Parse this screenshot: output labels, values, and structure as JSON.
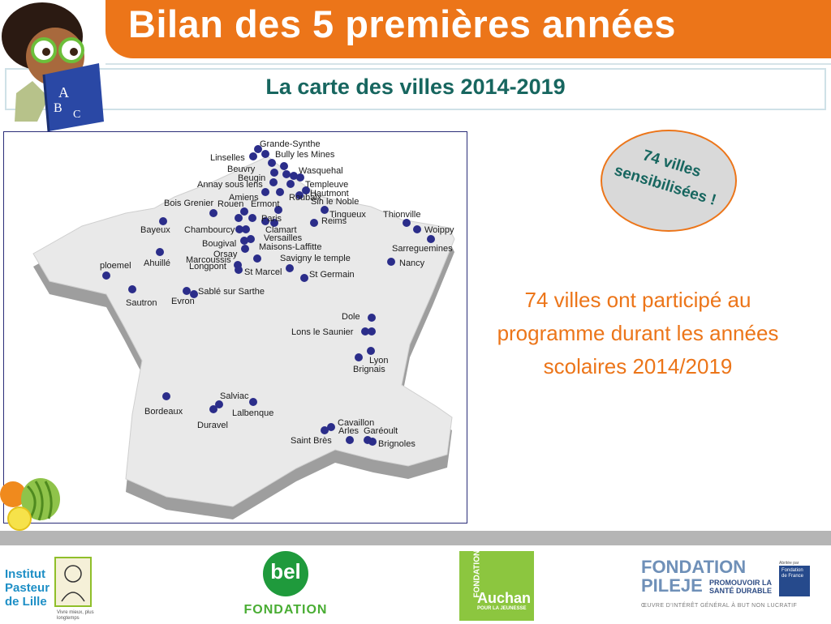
{
  "header": {
    "title": "Bilan des 5 premières années",
    "subtitle": "La carte des villes 2014-2019"
  },
  "mascot": {
    "book_letters": [
      "A",
      "B",
      "C"
    ]
  },
  "badge": {
    "line1": "74 villes",
    "line2": "sensibilisées !"
  },
  "description": "74 villes ont participé au programme durant les années scolaires 2014/2019",
  "map": {
    "cities": [
      "Grande-Synthe",
      "Bully les Mines",
      "Linselles",
      "Beuvry",
      "Wasquehal",
      "Beugin",
      "Annay sous lens",
      "Templeuve",
      "Hautmont",
      "Roubaix",
      "Amiens",
      "Sin le Noble",
      "Ermont",
      "Bois Grenier",
      "Rouen",
      "Tinqueux",
      "Thionville",
      "Paris",
      "Reims",
      "Woippy",
      "Bayeux",
      "Chambourcy",
      "Clamart",
      "Versailles",
      "Sarreguemines",
      "Bougival",
      "Maisons-Laffitte",
      "Orsay",
      "Savigny le temple",
      "Nancy",
      "Marcoussis",
      "Ahuillé",
      "Longpont",
      "ploemel",
      "St Marcel",
      "St Germain",
      "Sablé sur Sarthe",
      "Sautron",
      "Evron",
      "Dole",
      "Lons le Saunier",
      "Lyon",
      "Brignais",
      "Salviac",
      "Bordeaux",
      "Lalbenque",
      "Duravel",
      "Cavaillon",
      "Arles",
      "Garéoult",
      "Saint Brès",
      "Brignoles"
    ]
  },
  "footer": {
    "institut_pasteur": {
      "line1": "Institut",
      "line2": "Pasteur",
      "line3": "de Lille",
      "tagline": "Vivre mieux, plus longtemps"
    },
    "bel": {
      "word": "bel",
      "fondation": "FONDATION"
    },
    "auchan": {
      "vertical": "FONDATION",
      "name": "Auchan",
      "sub": "POUR LA JEUNESSE"
    },
    "pileje": {
      "line1": "FONDATION",
      "line2": "PILEJE",
      "promo": "PROMOUVOIR LA SANTÉ DURABLE",
      "abrite": "Abritée par",
      "fdf": "Fondation de France",
      "oeuvre": "ŒUVRE D'INTÉRÊT GÉNÉRAL À BUT NON LUCRATIF"
    }
  },
  "colors": {
    "orange": "#ec7519",
    "teal": "#17665f",
    "dot": "#2b2d8a",
    "map_fill": "#e9e9e9"
  }
}
